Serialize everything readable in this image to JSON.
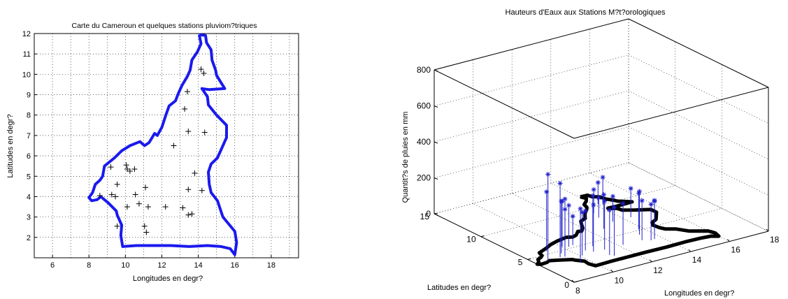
{
  "chart_data": [
    {
      "type": "scatter",
      "title": "Carte du Cameroun et quelques stations pluviom?triques",
      "xlabel": "Longitudes en degr?",
      "ylabel": "Latitudes en degr?",
      "xlim": [
        5,
        19.5
      ],
      "ylim": [
        1,
        12
      ],
      "xticks": [
        "6",
        "8",
        "10",
        "12",
        "14",
        "16",
        "18"
      ],
      "yticks": [
        "2",
        "3",
        "4",
        "5",
        "6",
        "7",
        "8",
        "9",
        "10",
        "11",
        "12"
      ],
      "grid": true,
      "border_color": "#1a1aee",
      "marker_color": "#000000",
      "border": [
        [
          14.05,
          11.95
        ],
        [
          14.4,
          11.9
        ],
        [
          14.45,
          11.55
        ],
        [
          14.7,
          11.2
        ],
        [
          14.75,
          10.7
        ],
        [
          14.95,
          10.2
        ],
        [
          15.0,
          9.95
        ],
        [
          15.45,
          9.3
        ],
        [
          14.6,
          9.25
        ],
        [
          14.2,
          9.3
        ],
        [
          14.5,
          8.9
        ],
        [
          14.55,
          8.5
        ],
        [
          15.0,
          8.0
        ],
        [
          15.55,
          7.5
        ],
        [
          15.55,
          6.9
        ],
        [
          15.3,
          6.4
        ],
        [
          15.05,
          5.9
        ],
        [
          14.7,
          5.6
        ],
        [
          14.55,
          5.2
        ],
        [
          14.6,
          4.6
        ],
        [
          14.7,
          4.2
        ],
        [
          15.05,
          3.8
        ],
        [
          15.2,
          3.4
        ],
        [
          15.35,
          3.0
        ],
        [
          16.0,
          2.3
        ],
        [
          16.1,
          1.75
        ],
        [
          16.0,
          1.15
        ],
        [
          15.75,
          1.45
        ],
        [
          15.25,
          1.55
        ],
        [
          14.5,
          1.6
        ],
        [
          13.5,
          1.55
        ],
        [
          12.5,
          1.6
        ],
        [
          11.5,
          1.6
        ],
        [
          10.6,
          1.6
        ],
        [
          9.85,
          1.55
        ],
        [
          9.75,
          2.1
        ],
        [
          9.8,
          2.6
        ],
        [
          9.55,
          3.1
        ],
        [
          9.5,
          3.3
        ],
        [
          9.05,
          3.7
        ],
        [
          8.65,
          4.0
        ],
        [
          8.45,
          3.85
        ],
        [
          8.15,
          3.8
        ],
        [
          8.0,
          3.95
        ],
        [
          8.2,
          4.2
        ],
        [
          8.35,
          4.6
        ],
        [
          8.6,
          4.8
        ],
        [
          8.75,
          5.0
        ],
        [
          8.85,
          5.5
        ],
        [
          9.4,
          5.9
        ],
        [
          9.8,
          6.25
        ],
        [
          10.25,
          6.5
        ],
        [
          10.8,
          6.7
        ],
        [
          11.05,
          6.5
        ],
        [
          11.3,
          6.65
        ],
        [
          11.6,
          7.1
        ],
        [
          11.75,
          7.0
        ],
        [
          12.0,
          7.4
        ],
        [
          12.2,
          7.95
        ],
        [
          12.4,
          8.45
        ],
        [
          12.75,
          8.7
        ],
        [
          12.9,
          9.05
        ],
        [
          13.1,
          9.45
        ],
        [
          13.4,
          9.9
        ],
        [
          13.55,
          10.2
        ],
        [
          13.65,
          10.7
        ],
        [
          13.95,
          11.1
        ],
        [
          14.15,
          11.5
        ],
        [
          14.05,
          11.95
        ]
      ],
      "stations": [
        [
          14.15,
          10.25
        ],
        [
          14.3,
          10.05
        ],
        [
          13.4,
          9.15
        ],
        [
          13.25,
          8.3
        ],
        [
          13.45,
          7.2
        ],
        [
          14.35,
          7.15
        ],
        [
          12.65,
          6.5
        ],
        [
          13.8,
          5.15
        ],
        [
          9.2,
          5.45
        ],
        [
          10.05,
          5.55
        ],
        [
          10.1,
          5.35
        ],
        [
          10.25,
          5.25
        ],
        [
          10.5,
          5.35
        ],
        [
          9.55,
          4.6
        ],
        [
          11.1,
          4.45
        ],
        [
          13.45,
          4.35
        ],
        [
          14.2,
          4.3
        ],
        [
          8.6,
          4.05
        ],
        [
          9.25,
          4.1
        ],
        [
          9.45,
          4.0
        ],
        [
          10.55,
          4.1
        ],
        [
          10.1,
          3.5
        ],
        [
          10.75,
          3.65
        ],
        [
          11.25,
          3.5
        ],
        [
          12.2,
          3.5
        ],
        [
          13.15,
          3.45
        ],
        [
          13.45,
          3.1
        ],
        [
          13.65,
          3.15
        ],
        [
          9.55,
          2.55
        ],
        [
          11.05,
          2.55
        ],
        [
          11.15,
          2.25
        ]
      ]
    },
    {
      "type": "scatter",
      "title": "Hauteurs d'Eaux aux Stations M?t?orologiques",
      "xlabel": "Longitudes en degr?",
      "ylabel": "Latitudes en degr?",
      "zlabel": "Quantit?s de pluies en mm",
      "xlim": [
        8,
        18
      ],
      "ylim": [
        0,
        15
      ],
      "zlim": [
        0,
        800
      ],
      "xticks": [
        "8",
        "10",
        "12",
        "14",
        "16",
        "18"
      ],
      "yticks": [
        "0",
        "5",
        "10",
        "15"
      ],
      "zticks": [
        "0",
        "200",
        "400",
        "600",
        "800"
      ],
      "grid": true,
      "stem_color": "#1f1fcc",
      "border_color": "#000000",
      "stations_rain": [
        [
          14.15,
          10.25,
          120
        ],
        [
          14.3,
          10.05,
          150
        ],
        [
          13.4,
          9.15,
          130
        ],
        [
          13.25,
          8.3,
          110
        ],
        [
          13.45,
          7.2,
          140
        ],
        [
          14.35,
          7.15,
          160
        ],
        [
          12.65,
          6.5,
          190
        ],
        [
          13.8,
          5.15,
          200
        ],
        [
          9.2,
          5.45,
          330
        ],
        [
          10.05,
          5.55,
          250
        ],
        [
          10.1,
          5.35,
          210
        ],
        [
          10.25,
          5.25,
          230
        ],
        [
          10.5,
          5.35,
          160
        ],
        [
          9.55,
          4.6,
          290
        ],
        [
          11.1,
          4.45,
          280
        ],
        [
          13.45,
          4.35,
          240
        ],
        [
          14.2,
          4.3,
          170
        ],
        [
          8.6,
          4.05,
          480
        ],
        [
          9.25,
          4.1,
          410
        ],
        [
          9.45,
          4.0,
          320
        ],
        [
          10.55,
          4.1,
          220
        ],
        [
          10.1,
          3.5,
          240
        ],
        [
          10.75,
          3.65,
          260
        ],
        [
          11.25,
          3.5,
          270
        ],
        [
          12.2,
          3.5,
          230
        ],
        [
          13.15,
          3.45,
          220
        ],
        [
          13.45,
          3.1,
          200
        ],
        [
          13.65,
          3.15,
          210
        ],
        [
          9.55,
          2.55,
          300
        ],
        [
          11.05,
          2.55,
          250
        ],
        [
          11.15,
          2.25,
          270
        ]
      ]
    }
  ]
}
